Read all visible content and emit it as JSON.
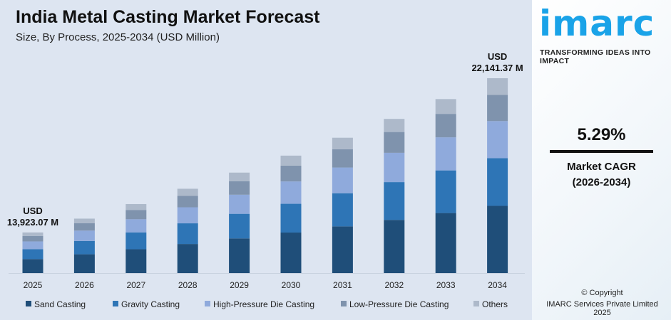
{
  "header": {
    "title": "India Metal Casting Market Forecast",
    "subtitle": "Size, By Process, 2025-2034 (USD Million)"
  },
  "brand": {
    "logo": "imarc",
    "tagline": "TRANSFORMING IDEAS INTO IMPACT"
  },
  "cagr": {
    "value": "5.29%",
    "label": "Market CAGR",
    "period": "(2026-2034)"
  },
  "footer": {
    "copyright": "© Copyright",
    "company": "IMARC Services Private Limited 2025"
  },
  "chart_data": {
    "type": "bar",
    "stacked": true,
    "title": "India Metal Casting Market Forecast",
    "subtitle": "Size, By Process, 2025-2034 (USD Million)",
    "categories": [
      "2025",
      "2026",
      "2027",
      "2028",
      "2029",
      "2030",
      "2031",
      "2032",
      "2033",
      "2034"
    ],
    "totals": [
      13923.07,
      14660,
      15436,
      16252,
      17112,
      18017,
      18970,
      19974,
      21030,
      22141.37
    ],
    "annotations": [
      {
        "category": "2025",
        "line1": "USD",
        "line2": "13,923.07 M"
      },
      {
        "category": "2034",
        "line1": "USD",
        "line2": "22,141.37 M"
      }
    ],
    "series": [
      {
        "name": "Sand Casting",
        "color": "#1f4e79",
        "share": 0.345
      },
      {
        "name": "Gravity Casting",
        "color": "#2e75b6",
        "share": 0.245
      },
      {
        "name": "High-Pressure Die Casting",
        "color": "#8faadc",
        "share": 0.19
      },
      {
        "name": "Low-Pressure Die Casting",
        "color": "#7f93ad",
        "share": 0.135
      },
      {
        "name": "Others",
        "color": "#adb9ca",
        "share": 0.085
      }
    ],
    "legend": "bottom",
    "grid": false,
    "y_axis_shown": false
  }
}
